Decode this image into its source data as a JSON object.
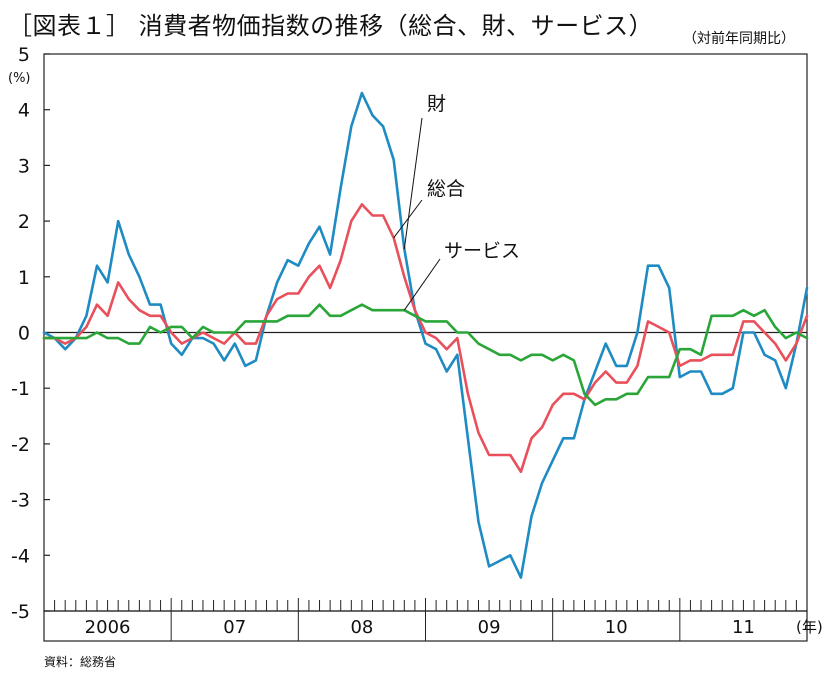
{
  "title": "［図表１］ 消費者物価指数の推移（総合、財、サービス）",
  "unit_note": "（対前年同期比）",
  "source": "資料：総務省",
  "chart_data": {
    "type": "line",
    "ylabel": "(%)",
    "xlabel": "(年)",
    "ylim": [
      -5,
      5
    ],
    "yticks": [
      5,
      4,
      3,
      2,
      1,
      0,
      -1,
      -2,
      -3,
      -4,
      -5
    ],
    "year_labels": [
      "2006",
      "07",
      "08",
      "09",
      "10",
      "11"
    ],
    "months_per_year": 12,
    "x_start": "2006-01",
    "x_end": "2012-01",
    "grid": false,
    "zero_line": true,
    "series": [
      {
        "name": "財",
        "color": "#1e8bc3",
        "values": [
          0.0,
          -0.1,
          -0.3,
          -0.1,
          0.3,
          1.2,
          0.9,
          2.0,
          1.4,
          1.0,
          0.5,
          0.5,
          -0.2,
          -0.4,
          -0.1,
          -0.1,
          -0.2,
          -0.5,
          -0.2,
          -0.6,
          -0.5,
          0.3,
          0.9,
          1.3,
          1.2,
          1.6,
          1.9,
          1.4,
          2.6,
          3.7,
          4.3,
          3.9,
          3.7,
          3.1,
          1.5,
          0.4,
          -0.2,
          -0.3,
          -0.7,
          -0.4,
          -1.9,
          -3.4,
          -4.2,
          -4.1,
          -4.0,
          -4.4,
          -3.3,
          -2.7,
          -2.3,
          -1.9,
          -1.9,
          -1.2,
          -0.7,
          -0.2,
          -0.6,
          -0.6,
          0.0,
          1.2,
          1.2,
          0.8,
          -0.8,
          -0.7,
          -0.7,
          -1.1,
          -1.1,
          -1.0,
          0.0,
          0.0,
          -0.4,
          -0.5,
          -1.0,
          -0.2,
          0.8
        ]
      },
      {
        "name": "総合",
        "color": "#e8505b",
        "values": [
          -0.1,
          -0.1,
          -0.2,
          -0.1,
          0.1,
          0.5,
          0.3,
          0.9,
          0.6,
          0.4,
          0.3,
          0.3,
          0.0,
          -0.2,
          -0.1,
          0.0,
          -0.1,
          -0.2,
          0.0,
          -0.2,
          -0.2,
          0.3,
          0.6,
          0.7,
          0.7,
          1.0,
          1.2,
          0.8,
          1.3,
          2.0,
          2.3,
          2.1,
          2.1,
          1.7,
          1.0,
          0.4,
          0.0,
          -0.1,
          -0.3,
          -0.1,
          -1.1,
          -1.8,
          -2.2,
          -2.2,
          -2.2,
          -2.5,
          -1.9,
          -1.7,
          -1.3,
          -1.1,
          -1.1,
          -1.2,
          -0.9,
          -0.7,
          -0.9,
          -0.9,
          -0.6,
          0.2,
          0.1,
          0.0,
          -0.6,
          -0.5,
          -0.5,
          -0.4,
          -0.4,
          -0.4,
          0.2,
          0.2,
          0.0,
          -0.2,
          -0.5,
          -0.2,
          0.3
        ]
      },
      {
        "name": "サービス",
        "color": "#2aa638",
        "values": [
          -0.1,
          -0.1,
          -0.1,
          -0.1,
          -0.1,
          0.0,
          -0.1,
          -0.1,
          -0.2,
          -0.2,
          0.1,
          0.0,
          0.1,
          0.1,
          -0.1,
          0.1,
          0.0,
          0.0,
          0.0,
          0.2,
          0.2,
          0.2,
          0.2,
          0.3,
          0.3,
          0.3,
          0.5,
          0.3,
          0.3,
          0.4,
          0.5,
          0.4,
          0.4,
          0.4,
          0.4,
          0.3,
          0.2,
          0.2,
          0.2,
          0.0,
          0.0,
          -0.2,
          -0.3,
          -0.4,
          -0.4,
          -0.5,
          -0.4,
          -0.4,
          -0.5,
          -0.4,
          -0.5,
          -1.1,
          -1.3,
          -1.2,
          -1.2,
          -1.1,
          -1.1,
          -0.8,
          -0.8,
          -0.8,
          -0.3,
          -0.3,
          -0.4,
          0.3,
          0.3,
          0.3,
          0.4,
          0.3,
          0.4,
          0.1,
          -0.1,
          0.0,
          -0.1
        ]
      }
    ],
    "annotations": [
      {
        "series": "財",
        "text": "財"
      },
      {
        "series": "総合",
        "text": "総合"
      },
      {
        "series": "サービス",
        "text": "サービス"
      }
    ]
  }
}
